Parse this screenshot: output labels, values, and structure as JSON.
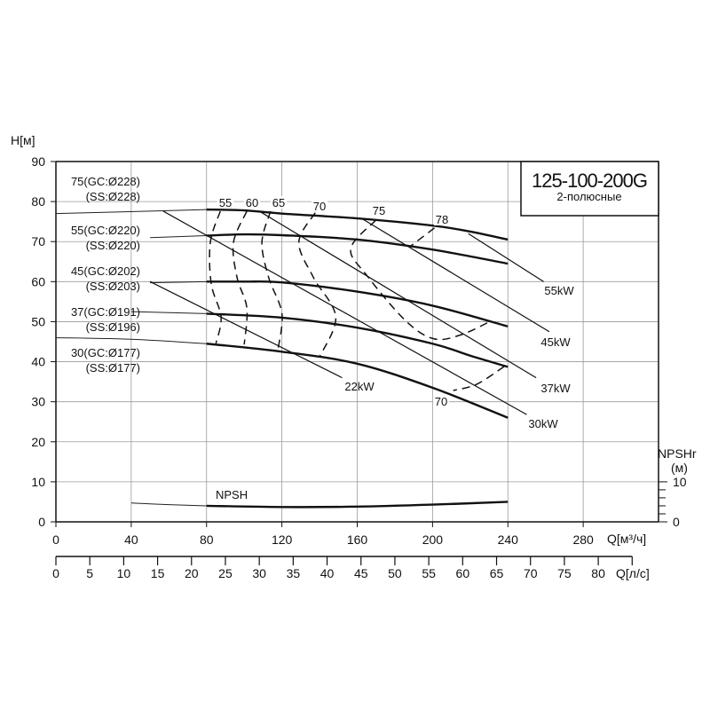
{
  "chart_data": {
    "type": "line",
    "title": "125-100-200G",
    "subtitle": "2-полюсные",
    "ylabel": "H[м]",
    "xlabel": "Q[м³/ч]",
    "x2label": "Q[л/с]",
    "y2label": "NPSHr",
    "y2unit": "(м)",
    "xlim": [
      0,
      320
    ],
    "ylim": [
      0,
      90
    ],
    "y2lim": [
      0,
      10
    ],
    "x2lim": [
      0,
      85
    ],
    "grid": true,
    "xticks": [
      0,
      40,
      80,
      120,
      160,
      200,
      240,
      280
    ],
    "yticks": [
      0,
      10,
      20,
      30,
      40,
      50,
      60,
      70,
      80,
      90
    ],
    "x2ticks": [
      0,
      5,
      10,
      15,
      20,
      25,
      30,
      35,
      40,
      45,
      50,
      55,
      60,
      65,
      70,
      75,
      80
    ],
    "y2ticks": [
      0,
      10
    ],
    "head_curves": [
      {
        "name": "75(GC:Ø228)",
        "name2": "(SS:Ø228)",
        "thin": [
          [
            0,
            77
          ],
          [
            57,
            77.7
          ],
          [
            80,
            78
          ]
        ],
        "thick": [
          [
            80,
            78
          ],
          [
            100,
            77.8
          ],
          [
            120,
            77
          ],
          [
            160,
            75.8
          ],
          [
            200,
            74
          ],
          [
            220,
            72.5
          ],
          [
            240,
            70.5
          ]
        ]
      },
      {
        "name": "55(GC:Ø220)",
        "name2": "(SS:Ø220)",
        "thin": [
          [
            50,
            71
          ],
          [
            80,
            71.5
          ]
        ],
        "thick": [
          [
            80,
            71.5
          ],
          [
            100,
            71.8
          ],
          [
            120,
            71.6
          ],
          [
            160,
            70.5
          ],
          [
            200,
            68
          ],
          [
            240,
            64.5
          ]
        ]
      },
      {
        "name": "45(GC:Ø202)",
        "name2": "(SS:Ø203)",
        "thin": [
          [
            50,
            59.7
          ],
          [
            80,
            60
          ]
        ],
        "thick": [
          [
            80,
            60
          ],
          [
            100,
            60
          ],
          [
            120,
            59.8
          ],
          [
            160,
            57.5
          ],
          [
            200,
            54
          ],
          [
            240,
            48.8
          ]
        ]
      },
      {
        "name": "37(GC:Ø191)",
        "name2": "(SS:Ø196)",
        "thin": [
          [
            40,
            52.5
          ],
          [
            80,
            52
          ]
        ],
        "thick": [
          [
            80,
            52
          ],
          [
            120,
            51
          ],
          [
            160,
            48.5
          ],
          [
            200,
            44.5
          ],
          [
            220,
            41.5
          ],
          [
            240,
            38.7
          ]
        ]
      },
      {
        "name": "30(GC:Ø177)",
        "name2": "(SS:Ø177)",
        "thin": [
          [
            0,
            46
          ],
          [
            40,
            45.6
          ],
          [
            80,
            44.5
          ]
        ],
        "thick": [
          [
            80,
            44.5
          ],
          [
            120,
            42.5
          ],
          [
            160,
            39.5
          ],
          [
            200,
            33.5
          ],
          [
            240,
            26
          ]
        ]
      }
    ],
    "power_lines": [
      {
        "name": "22kW",
        "points": [
          [
            50,
            60
          ],
          [
            152,
            36
          ]
        ]
      },
      {
        "name": "30kW",
        "points": [
          [
            57,
            77.6
          ],
          [
            250,
            26.8
          ]
        ]
      },
      {
        "name": "37kW",
        "points": [
          [
            108,
            77.6
          ],
          [
            255,
            36
          ]
        ]
      },
      {
        "name": "45kW",
        "points": [
          [
            163,
            75.6
          ],
          [
            262,
            47.5
          ]
        ]
      },
      {
        "name": "55kW",
        "points": [
          [
            219,
            72
          ],
          [
            259,
            60
          ]
        ]
      }
    ],
    "efficiency_curves": [
      {
        "name": "55",
        "points": [
          [
            87.3,
            77.6
          ],
          [
            82,
            69.8
          ],
          [
            82.5,
            59.4
          ],
          [
            87.7,
            51.2
          ],
          [
            85,
            44.6
          ]
        ]
      },
      {
        "name": "60",
        "points": [
          [
            101.4,
            77.6
          ],
          [
            94.3,
            69.8
          ],
          [
            96.2,
            61
          ],
          [
            101.4,
            53.4
          ],
          [
            100,
            44.3
          ]
        ]
      },
      {
        "name": "65",
        "points": [
          [
            114,
            77.6
          ],
          [
            109.4,
            69.8
          ],
          [
            113,
            61
          ],
          [
            120,
            52.1
          ],
          [
            118,
            43.2
          ]
        ]
      },
      {
        "name": "70",
        "points": [
          [
            137.7,
            77.2
          ],
          [
            129,
            69.8
          ],
          [
            136.8,
            61
          ],
          [
            148.6,
            51.2
          ],
          [
            140,
            41.2
          ]
        ]
      },
      {
        "name": "75",
        "points": [
          [
            170,
            75.4
          ],
          [
            156.6,
            68.3
          ],
          [
            165,
            61.6
          ],
          [
            186,
            50.1
          ],
          [
            201,
            45.7
          ],
          [
            215.6,
            46.8
          ],
          [
            230.7,
            50.1
          ]
        ]
      },
      {
        "name": "78",
        "points": [
          [
            201,
            73.4
          ],
          [
            188.7,
            69
          ]
        ]
      },
      {
        "name": "70",
        "points": [
          [
            238,
            38.8
          ],
          [
            223.6,
            34.4
          ],
          [
            211,
            32.8
          ]
        ]
      }
    ],
    "npsh": {
      "name": "NPSH",
      "thin": [
        [
          40,
          4.7
        ],
        [
          60,
          4.3
        ],
        [
          80,
          4
        ]
      ],
      "thick": [
        [
          80,
          4
        ],
        [
          120,
          3.7
        ],
        [
          160,
          3.8
        ],
        [
          200,
          4.3
        ],
        [
          240,
          5
        ]
      ]
    }
  }
}
